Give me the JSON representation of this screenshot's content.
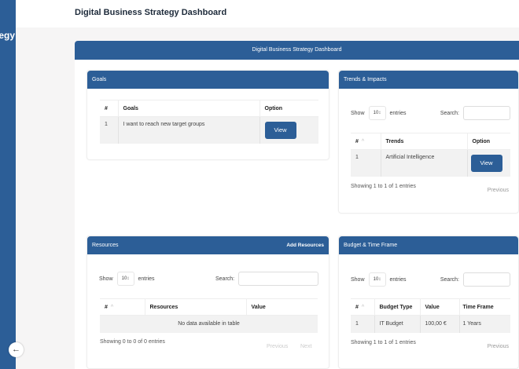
{
  "sidebar": {
    "brand": "Digital Business Strategy",
    "collapse_icon": "arrow-left-icon"
  },
  "header": {
    "title": "Digital Business Strategy Dashboard"
  },
  "main": {
    "title": "Digital Business Strategy Dashboard"
  },
  "colors": {
    "primary": "#2c5e97",
    "background": "#f6f5f5"
  },
  "goals": {
    "title": "Goals",
    "columns": [
      "#",
      "Goals",
      "Option"
    ],
    "rows": [
      {
        "num": "1",
        "goal": "I want to reach new target groups",
        "action": "View"
      }
    ]
  },
  "trends": {
    "title": "Trends & Impacts",
    "show": "Show",
    "page_size": "10",
    "entries": "entries",
    "search_label": "Search:",
    "columns": [
      "#",
      "Trends",
      "Option"
    ],
    "rows": [
      {
        "num": "1",
        "trend": "Artificial Intelligence",
        "action": "View"
      }
    ],
    "info": "Showing 1 to 1 of 1 entries",
    "previous": "Previous"
  },
  "resources": {
    "title": "Resources",
    "add_label": "Add Resources",
    "show": "Show",
    "page_size": "10",
    "entries": "entries",
    "search_label": "Search:",
    "columns": [
      "#",
      "Resources",
      "Value"
    ],
    "empty": "No data available in table",
    "info": "Showing 0 to 0 of 0 entries",
    "previous": "Previous",
    "next": "Next"
  },
  "budget": {
    "title": "Budget & Time Frame",
    "show": "Show",
    "page_size": "10",
    "entries": "entries",
    "search_label": "Search:",
    "columns": [
      "#",
      "Budget Type",
      "Value",
      "Time Frame"
    ],
    "rows": [
      {
        "num": "1",
        "type": "IT Budget",
        "value": "100,00 €",
        "time": "1 Years"
      }
    ],
    "info": "Showing 1 to 1 of 1 entries",
    "previous": "Previous"
  }
}
